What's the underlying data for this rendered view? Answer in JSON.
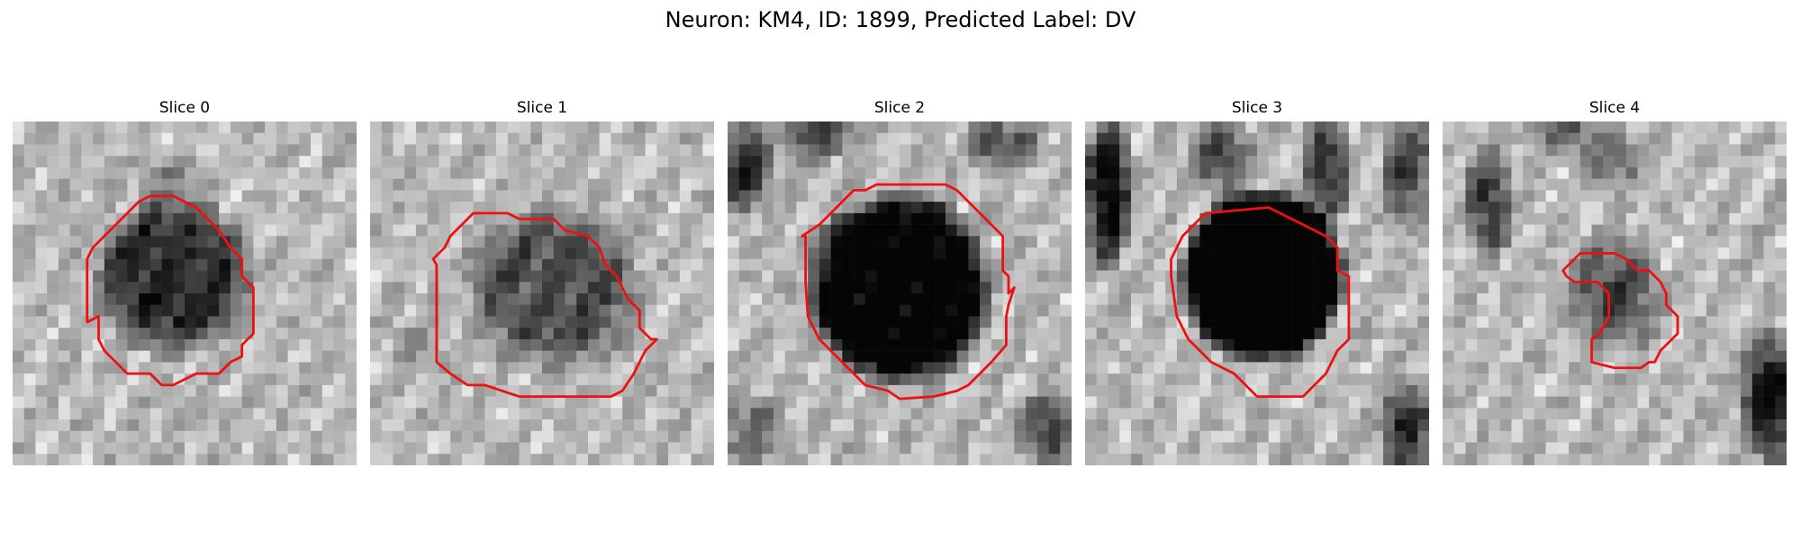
{
  "figure": {
    "title": "Neuron: KM4, ID: 1899, Predicted Label: DV"
  },
  "colors": {
    "contour": "#ee1111",
    "background": "#ffffff"
  },
  "panels": [
    {
      "title": "Slice 0"
    },
    {
      "title": "Slice 1"
    },
    {
      "title": "Slice 2"
    },
    {
      "title": "Slice 3"
    },
    {
      "title": "Slice 4"
    }
  ]
}
